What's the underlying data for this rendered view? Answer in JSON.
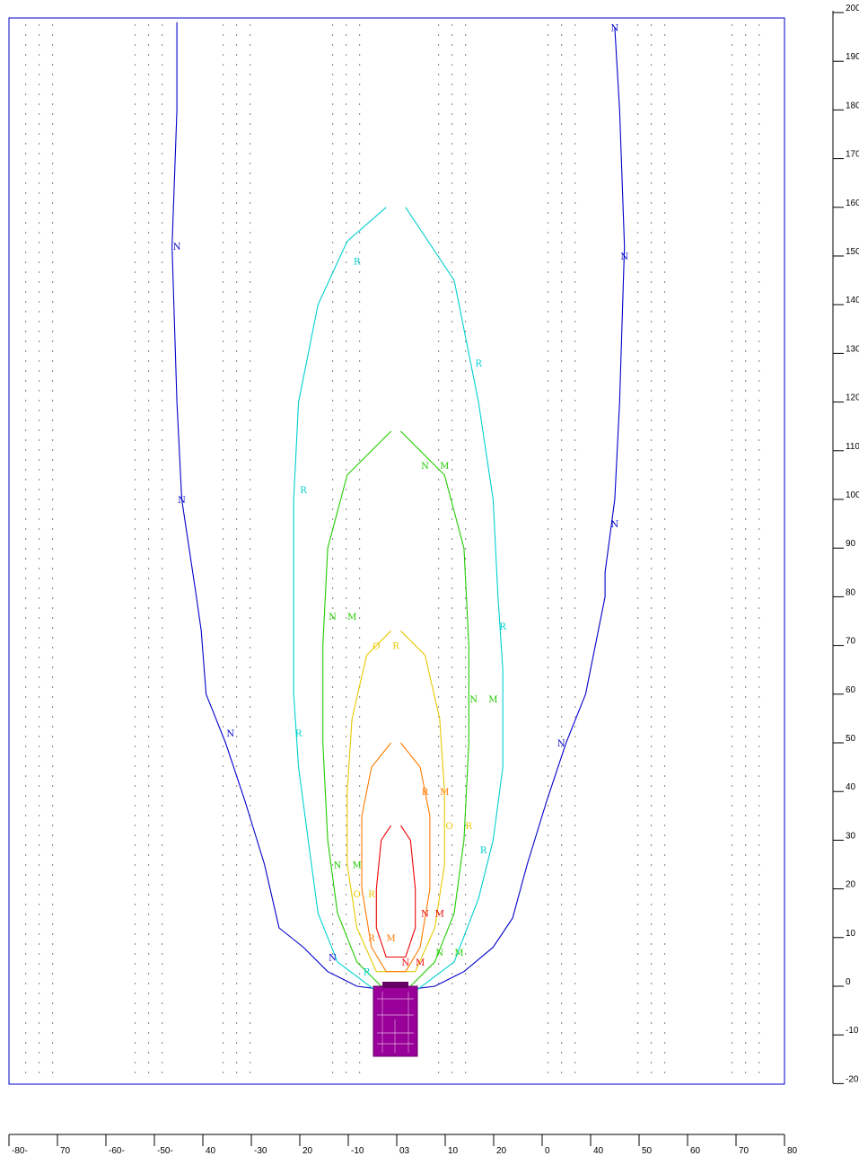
{
  "chart_data": {
    "type": "line",
    "title": "",
    "xlabel": "",
    "ylabel": "",
    "xlim": [
      -80,
      80
    ],
    "ylim": [
      -20,
      200
    ],
    "grid": "dotted",
    "y_ticks": [
      "200",
      "190",
      "180",
      "170",
      "160",
      "150",
      "140",
      "130",
      "120",
      "110",
      "100",
      "90",
      "80",
      "70",
      "60",
      "50",
      "40",
      "30",
      "20",
      "10",
      "0",
      "-10",
      "-20"
    ],
    "x_ticks": [
      "-80-",
      "70",
      "-60-",
      "-50-",
      "40",
      "-30",
      "20",
      "-10",
      "03",
      "10",
      "20",
      "0",
      "40",
      "50",
      "60",
      "70",
      "80"
    ],
    "series": [
      {
        "color": "#0000cc",
        "points": [
          [
            -45,
            198
          ],
          [
            -45,
            180
          ],
          [
            -46,
            152
          ],
          [
            -45,
            120
          ],
          [
            -44,
            100
          ],
          [
            -41,
            80
          ],
          [
            -40,
            73
          ],
          [
            -39,
            60
          ],
          [
            -35,
            50
          ],
          [
            -31,
            38
          ],
          [
            -27,
            25
          ],
          [
            -24,
            12
          ],
          [
            -19,
            8
          ],
          [
            -14,
            3
          ],
          [
            -8,
            0
          ],
          [
            0,
            -1
          ],
          [
            8,
            0
          ],
          [
            14,
            3
          ],
          [
            20,
            8
          ],
          [
            24,
            14
          ],
          [
            27,
            25
          ],
          [
            31,
            38
          ],
          [
            35,
            50
          ],
          [
            39,
            60
          ],
          [
            43,
            80
          ],
          [
            43,
            85
          ],
          [
            45,
            100
          ],
          [
            46,
            120
          ],
          [
            47,
            152
          ],
          [
            46,
            180
          ],
          [
            45,
            197
          ]
        ],
        "labels": [
          {
            "text": "N",
            "x": -45,
            "y": 152
          },
          {
            "text": "N",
            "x": -44,
            "y": 100
          },
          {
            "text": "N",
            "x": -34,
            "y": 52
          },
          {
            "text": "N",
            "x": -13,
            "y": 6
          },
          {
            "text": "N",
            "x": 45,
            "y": 197
          },
          {
            "text": "N",
            "x": 47,
            "y": 150
          },
          {
            "text": "N",
            "x": 45,
            "y": 95
          },
          {
            "text": "N",
            "x": 34,
            "y": 50
          }
        ]
      },
      {
        "color": "#00d0d0",
        "points": [
          [
            -2,
            160
          ],
          [
            -10,
            153
          ],
          [
            -16,
            140
          ],
          [
            -20,
            120
          ],
          [
            -21,
            100
          ],
          [
            -21,
            80
          ],
          [
            -21,
            60
          ],
          [
            -20,
            45
          ],
          [
            -18,
            30
          ],
          [
            -16,
            15
          ],
          [
            -12,
            5
          ],
          [
            -4,
            -1
          ],
          [
            4,
            -1
          ],
          [
            12,
            5
          ],
          [
            17,
            18
          ],
          [
            20,
            30
          ],
          [
            22,
            45
          ],
          [
            22,
            65
          ],
          [
            21,
            80
          ],
          [
            20,
            100
          ],
          [
            17,
            120
          ],
          [
            12,
            145
          ],
          [
            2,
            160
          ]
        ],
        "labels": [
          {
            "text": "R",
            "x": -8,
            "y": 149
          },
          {
            "text": "R",
            "x": 17,
            "y": 128
          },
          {
            "text": "R",
            "x": -19,
            "y": 102
          },
          {
            "text": "R",
            "x": 22,
            "y": 74
          },
          {
            "text": "R",
            "x": -20,
            "y": 52
          },
          {
            "text": "R",
            "x": 18,
            "y": 28
          },
          {
            "text": "R",
            "x": -6,
            "y": 3
          }
        ]
      },
      {
        "color": "#22cc00",
        "points": [
          [
            -1,
            114
          ],
          [
            -10,
            105
          ],
          [
            -14,
            90
          ],
          [
            -15,
            70
          ],
          [
            -15,
            50
          ],
          [
            -14,
            30
          ],
          [
            -12,
            15
          ],
          [
            -8,
            5
          ],
          [
            -3,
            0
          ],
          [
            3,
            0
          ],
          [
            8,
            5
          ],
          [
            12,
            15
          ],
          [
            14,
            30
          ],
          [
            15,
            50
          ],
          [
            15,
            70
          ],
          [
            14,
            90
          ],
          [
            10,
            105
          ],
          [
            1,
            114
          ]
        ],
        "labels": [
          {
            "text": "N",
            "x": 6,
            "y": 107
          },
          {
            "text": "M",
            "x": 10,
            "y": 107
          },
          {
            "text": "N",
            "x": -13,
            "y": 76
          },
          {
            "text": "M",
            "x": -9,
            "y": 76
          },
          {
            "text": "N",
            "x": 16,
            "y": 59
          },
          {
            "text": "M",
            "x": 20,
            "y": 59
          },
          {
            "text": "N",
            "x": -12,
            "y": 25
          },
          {
            "text": "M",
            "x": -8,
            "y": 25
          },
          {
            "text": "N",
            "x": 9,
            "y": 7
          },
          {
            "text": "M",
            "x": 13,
            "y": 7
          }
        ]
      },
      {
        "color": "#e8c800",
        "points": [
          [
            -1,
            73
          ],
          [
            -6,
            68
          ],
          [
            -9,
            55
          ],
          [
            -10,
            40
          ],
          [
            -10,
            25
          ],
          [
            -8,
            12
          ],
          [
            -4,
            3
          ],
          [
            4,
            3
          ],
          [
            8,
            12
          ],
          [
            10,
            25
          ],
          [
            10,
            40
          ],
          [
            9,
            55
          ],
          [
            6,
            68
          ],
          [
            1,
            73
          ]
        ],
        "labels": [
          {
            "text": "O",
            "x": -4,
            "y": 70
          },
          {
            "text": "R",
            "x": 0,
            "y": 70
          },
          {
            "text": "O",
            "x": 11,
            "y": 33
          },
          {
            "text": "R",
            "x": 15,
            "y": 33
          },
          {
            "text": "O",
            "x": -8,
            "y": 19
          },
          {
            "text": "R",
            "x": -5,
            "y": 19
          }
        ]
      },
      {
        "color": "#ff7a00",
        "points": [
          [
            -1,
            50
          ],
          [
            -5,
            45
          ],
          [
            -7,
            35
          ],
          [
            -7,
            20
          ],
          [
            -5,
            8
          ],
          [
            -2,
            3
          ],
          [
            2,
            3
          ],
          [
            5,
            8
          ],
          [
            7,
            20
          ],
          [
            7,
            35
          ],
          [
            5,
            45
          ],
          [
            1,
            50
          ]
        ],
        "labels": [
          {
            "text": "R",
            "x": 6,
            "y": 40
          },
          {
            "text": "M",
            "x": 10,
            "y": 40
          },
          {
            "text": "R",
            "x": -5,
            "y": 10
          },
          {
            "text": "M",
            "x": -1,
            "y": 10
          }
        ]
      },
      {
        "color": "#ee0000",
        "points": [
          [
            -1,
            33
          ],
          [
            -3,
            30
          ],
          [
            -4,
            20
          ],
          [
            -4,
            12
          ],
          [
            -2,
            6
          ],
          [
            2,
            6
          ],
          [
            4,
            12
          ],
          [
            4,
            20
          ],
          [
            3,
            30
          ],
          [
            1,
            33
          ]
        ],
        "labels": [
          {
            "text": "N",
            "x": 6,
            "y": 15
          },
          {
            "text": "M",
            "x": 9,
            "y": 15
          },
          {
            "text": "N",
            "x": 2,
            "y": 5
          },
          {
            "text": "M",
            "x": 5,
            "y": 5
          }
        ]
      }
    ]
  }
}
